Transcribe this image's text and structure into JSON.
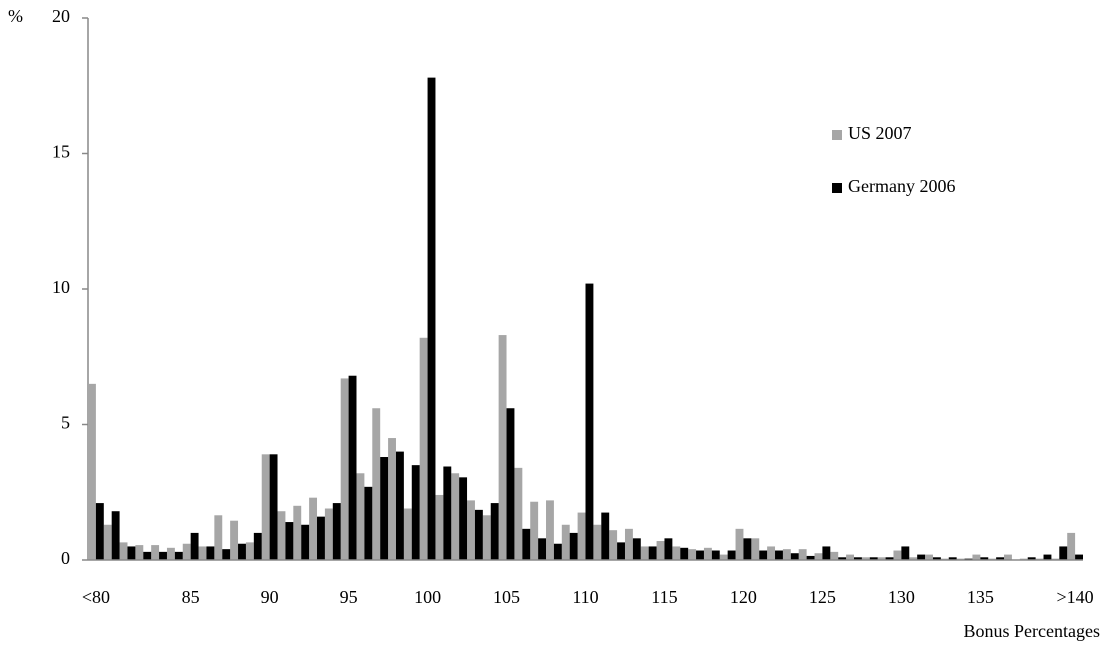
{
  "chart_data": {
    "type": "bar",
    "y_label": "%",
    "x_label": "Bonus Percentages",
    "categories": [
      "<80",
      null,
      null,
      null,
      null,
      null,
      "85",
      null,
      null,
      null,
      null,
      "90",
      null,
      null,
      null,
      null,
      "95",
      null,
      null,
      null,
      null,
      "100",
      null,
      null,
      null,
      null,
      "105",
      null,
      null,
      null,
      null,
      "110",
      null,
      null,
      null,
      null,
      "115",
      null,
      null,
      null,
      null,
      "120",
      null,
      null,
      null,
      null,
      "125",
      null,
      null,
      null,
      null,
      "130",
      null,
      null,
      null,
      null,
      "135",
      null,
      null,
      null,
      null,
      null,
      ">140"
    ],
    "series": [
      {
        "name": "US 2007",
        "color": "#a6a6a6",
        "values": [
          6.5,
          1.3,
          0.65,
          0.55,
          0.55,
          0.45,
          0.6,
          0.5,
          1.65,
          1.45,
          0.65,
          3.9,
          1.8,
          2.0,
          2.3,
          1.9,
          6.7,
          3.2,
          5.6,
          4.5,
          1.9,
          8.2,
          2.4,
          3.2,
          2.2,
          1.65,
          8.3,
          3.4,
          2.15,
          2.2,
          1.3,
          1.75,
          1.3,
          1.1,
          1.15,
          0.5,
          0.7,
          0.5,
          0.4,
          0.45,
          0.2,
          1.15,
          0.8,
          0.5,
          0.4,
          0.4,
          0.25,
          0.3,
          0.2,
          0.1,
          0.1,
          0.35,
          0.1,
          0.2,
          0.05,
          0.05,
          0.2,
          0.05,
          0.2,
          0.05,
          0.05,
          0.05,
          1.0
        ]
      },
      {
        "name": "Germany 2006",
        "color": "#000000",
        "values": [
          2.1,
          1.8,
          0.5,
          0.3,
          0.3,
          0.3,
          1.0,
          0.5,
          0.4,
          0.6,
          1.0,
          3.9,
          1.4,
          1.3,
          1.6,
          2.1,
          6.8,
          2.7,
          3.8,
          4.0,
          3.5,
          17.8,
          3.45,
          3.05,
          1.85,
          2.1,
          5.6,
          1.15,
          0.8,
          0.6,
          1.0,
          10.2,
          1.75,
          0.65,
          0.8,
          0.5,
          0.8,
          0.45,
          0.35,
          0.35,
          0.35,
          0.8,
          0.35,
          0.35,
          0.25,
          0.15,
          0.5,
          0.1,
          0.1,
          0.1,
          0.1,
          0.5,
          0.2,
          0.1,
          0.1,
          0.05,
          0.1,
          0.1,
          0,
          0.1,
          0.2,
          0.5,
          0.2
        ]
      }
    ],
    "ylim": [
      0,
      20
    ],
    "yticks": [
      0,
      5,
      10,
      15,
      20
    ],
    "grid": false,
    "legend": "upper-right"
  }
}
